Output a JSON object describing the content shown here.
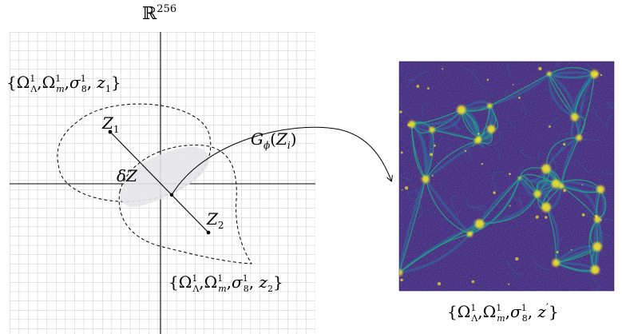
{
  "space_label": {
    "base": "ℝ",
    "sup": "256"
  },
  "set_1": {
    "omega_l": "Ω",
    "omega_l_sup": "1",
    "omega_l_sub": "Λ",
    "omega_m": "Ω",
    "omega_m_sup": "1",
    "omega_m_sub": "m",
    "sigma": "σ",
    "sigma_sup": "1",
    "sigma_sub": "8",
    "z": "z",
    "z_sub": "1"
  },
  "set_2": {
    "omega_l": "Ω",
    "omega_l_sup": "1",
    "omega_l_sub": "Λ",
    "omega_m": "Ω",
    "omega_m_sup": "1",
    "omega_m_sub": "m",
    "sigma": "σ",
    "sigma_sup": "1",
    "sigma_sub": "8",
    "z": "z",
    "z_sub": "2"
  },
  "set_out": {
    "omega_l": "Ω",
    "omega_l_sup": "1",
    "omega_l_sub": "Λ",
    "omega_m": "Ω",
    "omega_m_sup": "1",
    "omega_m_sub": "m",
    "sigma": "σ",
    "sigma_sup": "1",
    "sigma_sub": "8",
    "z": "z",
    "z_prime": "′"
  },
  "points": {
    "z1": "Z",
    "z1_sub": "1",
    "z2": "Z",
    "z2_sub": "2",
    "delta": "δZ"
  },
  "generator": {
    "g": "G",
    "g_sub": "ϕ",
    "arg_open": "(",
    "arg": "Z",
    "arg_sub": "i",
    "arg_close": ")"
  },
  "colors": {
    "grid": "#c8c8c8",
    "axis": "#000000",
    "overlap_fill": "#e6e6e8",
    "sim_background": "#3b0f6f",
    "filament_low": "#2f6f9e",
    "filament_mid": "#22a884",
    "filament_high": "#fde725"
  }
}
